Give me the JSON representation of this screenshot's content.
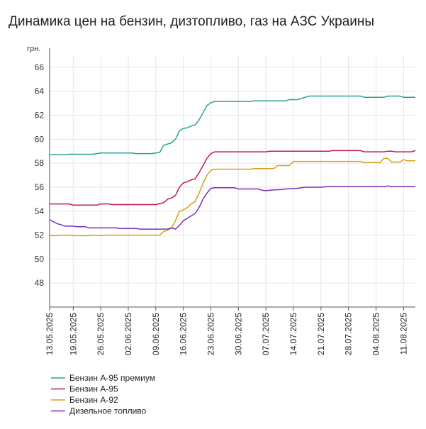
{
  "chart_data": {
    "type": "line",
    "title": "Динамика цен на бензин, дизтопливо, газ на АЗС Украины",
    "ylabel": "грн.",
    "ylim": [
      46,
      67
    ],
    "yticks": [
      48,
      50,
      52,
      54,
      56,
      58,
      60,
      62,
      64,
      66
    ],
    "grid": true,
    "legend_position": "bottom-left",
    "xticks": [
      "13.05.2025",
      "19.05.2025",
      "26.05.2025",
      "02.06.2025",
      "09.06.2025",
      "16.06.2025",
      "23.06.2025",
      "30.06.2025",
      "07.07.2025",
      "14.07.2025",
      "21.07.2025",
      "28.07.2025",
      "04.08.2025",
      "11.08.2025"
    ],
    "x_range": [
      "2025-05-13",
      "2025-08-14"
    ],
    "series": [
      {
        "name": "Бензин А-95 премиум",
        "color": "#2aa198",
        "points": [
          [
            "2025-05-13",
            58.7
          ],
          [
            "2025-05-17",
            58.7
          ],
          [
            "2025-05-18",
            58.75
          ],
          [
            "2025-05-24",
            58.75
          ],
          [
            "2025-05-26",
            58.85
          ],
          [
            "2025-06-03",
            58.85
          ],
          [
            "2025-06-04",
            58.8
          ],
          [
            "2025-06-08",
            58.8
          ],
          [
            "2025-06-10",
            58.9
          ],
          [
            "2025-06-11",
            59.5
          ],
          [
            "2025-06-12",
            59.6
          ],
          [
            "2025-06-13",
            59.7
          ],
          [
            "2025-06-14",
            60.0
          ],
          [
            "2025-06-15",
            60.7
          ],
          [
            "2025-06-16",
            60.9
          ],
          [
            "2025-06-17",
            60.95
          ],
          [
            "2025-06-18",
            61.1
          ],
          [
            "2025-06-19",
            61.2
          ],
          [
            "2025-06-20",
            61.6
          ],
          [
            "2025-06-21",
            62.2
          ],
          [
            "2025-06-22",
            62.8
          ],
          [
            "2025-06-23",
            63.05
          ],
          [
            "2025-06-24",
            63.15
          ],
          [
            "2025-07-03",
            63.15
          ],
          [
            "2025-07-04",
            63.2
          ],
          [
            "2025-07-12",
            63.2
          ],
          [
            "2025-07-13",
            63.3
          ],
          [
            "2025-07-15",
            63.3
          ],
          [
            "2025-07-17",
            63.5
          ],
          [
            "2025-07-18",
            63.6
          ],
          [
            "2025-07-31",
            63.6
          ],
          [
            "2025-08-01",
            63.5
          ],
          [
            "2025-08-06",
            63.5
          ],
          [
            "2025-08-07",
            63.6
          ],
          [
            "2025-08-10",
            63.6
          ],
          [
            "2025-08-11",
            63.5
          ],
          [
            "2025-08-14",
            63.5
          ]
        ]
      },
      {
        "name": "Бензин А-95",
        "color": "#c2185b",
        "points": [
          [
            "2025-05-13",
            54.6
          ],
          [
            "2025-05-18",
            54.6
          ],
          [
            "2025-05-19",
            54.5
          ],
          [
            "2025-05-25",
            54.5
          ],
          [
            "2025-05-26",
            54.6
          ],
          [
            "2025-05-28",
            54.6
          ],
          [
            "2025-05-29",
            54.55
          ],
          [
            "2025-06-09",
            54.55
          ],
          [
            "2025-06-11",
            54.7
          ],
          [
            "2025-06-12",
            55.0
          ],
          [
            "2025-06-13",
            55.1
          ],
          [
            "2025-06-14",
            55.3
          ],
          [
            "2025-06-15",
            56.0
          ],
          [
            "2025-06-16",
            56.35
          ],
          [
            "2025-06-17",
            56.45
          ],
          [
            "2025-06-18",
            56.6
          ],
          [
            "2025-06-19",
            56.7
          ],
          [
            "2025-06-20",
            57.2
          ],
          [
            "2025-06-21",
            57.8
          ],
          [
            "2025-06-22",
            58.4
          ],
          [
            "2025-06-23",
            58.8
          ],
          [
            "2025-06-24",
            58.95
          ],
          [
            "2025-07-07",
            58.95
          ],
          [
            "2025-07-08",
            59.0
          ],
          [
            "2025-07-23",
            59.0
          ],
          [
            "2025-07-24",
            59.05
          ],
          [
            "2025-07-31",
            59.05
          ],
          [
            "2025-08-01",
            58.95
          ],
          [
            "2025-08-06",
            58.95
          ],
          [
            "2025-08-07",
            59.0
          ],
          [
            "2025-08-08",
            59.0
          ],
          [
            "2025-08-09",
            58.95
          ],
          [
            "2025-08-13",
            58.95
          ],
          [
            "2025-08-14",
            59.05
          ]
        ]
      },
      {
        "name": "Бензин А-92",
        "color": "#d4a017",
        "points": [
          [
            "2025-05-13",
            51.95
          ],
          [
            "2025-05-15",
            51.95
          ],
          [
            "2025-05-16",
            52.0
          ],
          [
            "2025-05-18",
            52.0
          ],
          [
            "2025-05-19",
            51.95
          ],
          [
            "2025-05-23",
            51.95
          ],
          [
            "2025-05-24",
            52.0
          ],
          [
            "2025-05-26",
            51.95
          ],
          [
            "2025-05-27",
            52.0
          ],
          [
            "2025-06-09",
            52.0
          ],
          [
            "2025-06-10",
            52.0
          ],
          [
            "2025-06-11",
            52.3
          ],
          [
            "2025-06-12",
            52.4
          ],
          [
            "2025-06-13",
            52.6
          ],
          [
            "2025-06-14",
            53.2
          ],
          [
            "2025-06-15",
            54.0
          ],
          [
            "2025-06-16",
            54.1
          ],
          [
            "2025-06-17",
            54.3
          ],
          [
            "2025-06-18",
            54.6
          ],
          [
            "2025-06-19",
            54.8
          ],
          [
            "2025-06-20",
            55.5
          ],
          [
            "2025-06-21",
            56.3
          ],
          [
            "2025-06-22",
            57.0
          ],
          [
            "2025-06-23",
            57.4
          ],
          [
            "2025-06-24",
            57.5
          ],
          [
            "2025-07-03",
            57.5
          ],
          [
            "2025-07-04",
            57.55
          ],
          [
            "2025-07-09",
            57.55
          ],
          [
            "2025-07-10",
            57.8
          ],
          [
            "2025-07-13",
            57.8
          ],
          [
            "2025-07-14",
            58.15
          ],
          [
            "2025-07-31",
            58.15
          ],
          [
            "2025-08-01",
            58.05
          ],
          [
            "2025-08-05",
            58.05
          ],
          [
            "2025-08-06",
            58.4
          ],
          [
            "2025-08-07",
            58.4
          ],
          [
            "2025-08-08",
            58.1
          ],
          [
            "2025-08-10",
            58.1
          ],
          [
            "2025-08-11",
            58.3
          ],
          [
            "2025-08-12",
            58.2
          ],
          [
            "2025-08-14",
            58.2
          ]
        ]
      },
      {
        "name": "Дизельное топливо",
        "color": "#7b2cbf",
        "points": [
          [
            "2025-05-13",
            53.3
          ],
          [
            "2025-05-14",
            53.1
          ],
          [
            "2025-05-15",
            52.95
          ],
          [
            "2025-05-16",
            52.85
          ],
          [
            "2025-05-17",
            52.75
          ],
          [
            "2025-05-19",
            52.75
          ],
          [
            "2025-05-20",
            52.7
          ],
          [
            "2025-05-22",
            52.7
          ],
          [
            "2025-05-23",
            52.6
          ],
          [
            "2025-05-30",
            52.6
          ],
          [
            "2025-05-31",
            52.55
          ],
          [
            "2025-06-04",
            52.55
          ],
          [
            "2025-06-05",
            52.5
          ],
          [
            "2025-06-12",
            52.5
          ],
          [
            "2025-06-13",
            52.6
          ],
          [
            "2025-06-14",
            52.5
          ],
          [
            "2025-06-15",
            52.8
          ],
          [
            "2025-06-16",
            53.2
          ],
          [
            "2025-06-17",
            53.4
          ],
          [
            "2025-06-18",
            53.6
          ],
          [
            "2025-06-19",
            53.8
          ],
          [
            "2025-06-20",
            54.3
          ],
          [
            "2025-06-21",
            55.0
          ],
          [
            "2025-06-22",
            55.5
          ],
          [
            "2025-06-23",
            55.9
          ],
          [
            "2025-06-24",
            55.95
          ],
          [
            "2025-06-29",
            55.95
          ],
          [
            "2025-06-30",
            55.85
          ],
          [
            "2025-07-05",
            55.85
          ],
          [
            "2025-07-06",
            55.75
          ],
          [
            "2025-07-07",
            55.7
          ],
          [
            "2025-07-08",
            55.75
          ],
          [
            "2025-07-11",
            55.8
          ],
          [
            "2025-07-12",
            55.85
          ],
          [
            "2025-07-15",
            55.9
          ],
          [
            "2025-07-17",
            56.0
          ],
          [
            "2025-07-21",
            56.0
          ],
          [
            "2025-07-23",
            56.05
          ],
          [
            "2025-08-06",
            56.05
          ],
          [
            "2025-08-07",
            56.1
          ],
          [
            "2025-08-08",
            56.05
          ],
          [
            "2025-08-14",
            56.05
          ]
        ]
      }
    ]
  }
}
